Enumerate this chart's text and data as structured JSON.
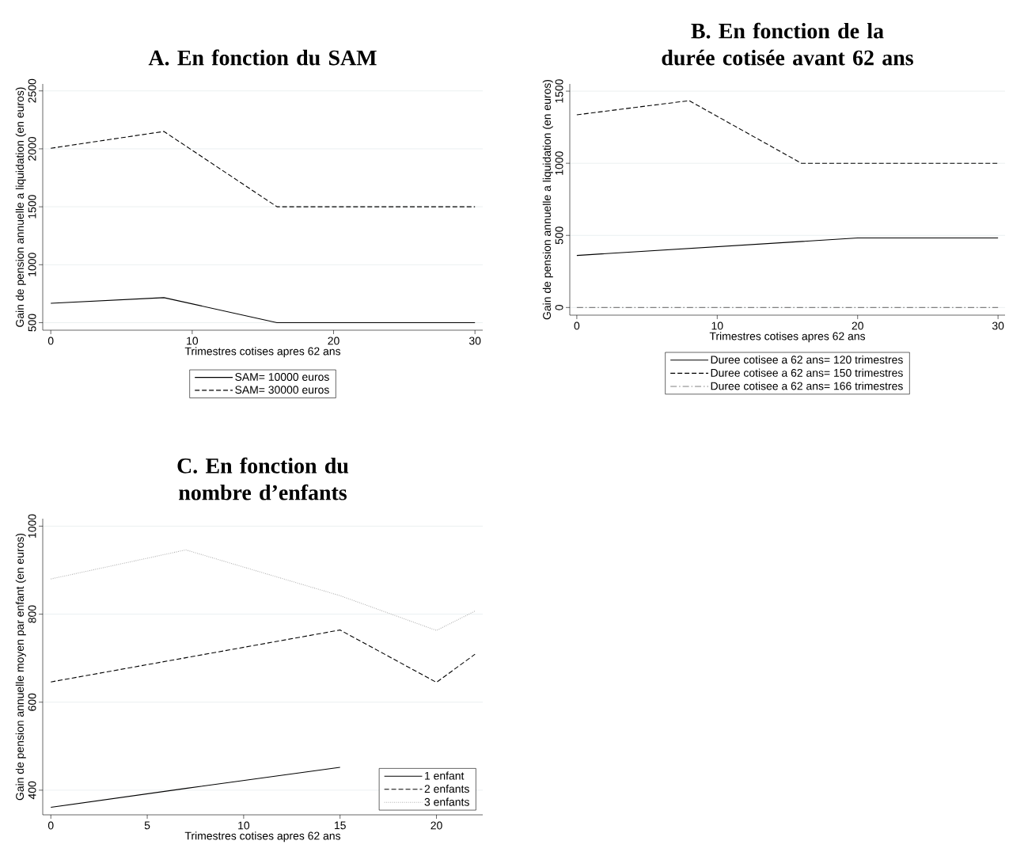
{
  "chart_data": [
    {
      "type": "line",
      "title": "**A. En fonction du SAM**",
      "xlabel": "Trimestres cotises apres 62 ans",
      "ylabel": "Gain de pension annuelle a liquidation (en euros)",
      "xlim": [
        -0.57,
        30.55
      ],
      "ylim": [
        435,
        2560
      ],
      "xticks": [
        0,
        10,
        20,
        30
      ],
      "yticks": [
        500,
        1000,
        1500,
        2000,
        2500
      ],
      "grid": "y",
      "legend": "bottom",
      "x": [
        0,
        8,
        16,
        30
      ],
      "series": [
        {
          "name": "SAM= 10000 euros",
          "color": "#000000",
          "line_style": "solid",
          "values": [
            667,
            716,
            500,
            500
          ]
        },
        {
          "name": "SAM= 30000 euros",
          "color": "#000000",
          "line_style": "dashed",
          "values": [
            2005,
            2150,
            1500,
            1500
          ]
        }
      ]
    },
    {
      "type": "line",
      "title": "**B. En fonction de la durée cotisée avant 62 ans**",
      "xlabel": "Trimestres cotises apres 62 ans",
      "ylabel": "Gain de pension annuelle a liquidation (en euros)",
      "xlim": [
        -0.5,
        30.5
      ],
      "ylim": [
        -53,
        1550
      ],
      "xticks": [
        0,
        10,
        20,
        30
      ],
      "yticks": [
        0,
        500,
        1000,
        1500
      ],
      "grid": "y",
      "legend": "bottom",
      "series": [
        {
          "name": "Duree cotisee a 62 ans= 120 trimestres",
          "color": "#000000",
          "line_style": "solid",
          "x": [
            0,
            20,
            30
          ],
          "values": [
            361,
            482,
            482
          ]
        },
        {
          "name": "Duree cotisee a 62 ans= 150 trimestres",
          "color": "#000000",
          "line_style": "dashed",
          "x": [
            0,
            8,
            16,
            30
          ],
          "values": [
            1336,
            1434,
            1000,
            1000
          ]
        },
        {
          "name": "Duree cotisee a 62 ans= 166 trimestres",
          "color": "#808080",
          "line_style": "dashdot",
          "x": [
            0,
            30
          ],
          "values": [
            0,
            0
          ]
        }
      ]
    },
    {
      "type": "line",
      "title": "**C. En fonction du nombre d’enfants**",
      "xlabel": "Trimestres cotises apres 62 ans",
      "ylabel": "Gain de pension annuelle moyen par enfant (en euros)",
      "xlim": [
        -0.42,
        22.4
      ],
      "ylim": [
        344,
        1017
      ],
      "xticks": [
        0,
        5,
        10,
        15,
        20
      ],
      "yticks": [
        400,
        600,
        800,
        1000
      ],
      "grid": "y",
      "legend": "bottom right",
      "x": [
        0,
        7,
        15,
        20,
        22
      ],
      "series": [
        {
          "name": "1 enfant",
          "color": "#000000",
          "line_style": "solid",
          "values": [
            361,
            404,
            452,
            null,
            null
          ]
        },
        {
          "name": "2 enfants",
          "color": "#000000",
          "line_style": "dashed",
          "values": [
            646,
            701,
            764,
            645,
            709
          ]
        },
        {
          "name": "3 enfants",
          "color": "#b0b0b0",
          "line_style": "dotted",
          "values": [
            880,
            946,
            842,
            763,
            807
          ]
        }
      ]
    }
  ]
}
